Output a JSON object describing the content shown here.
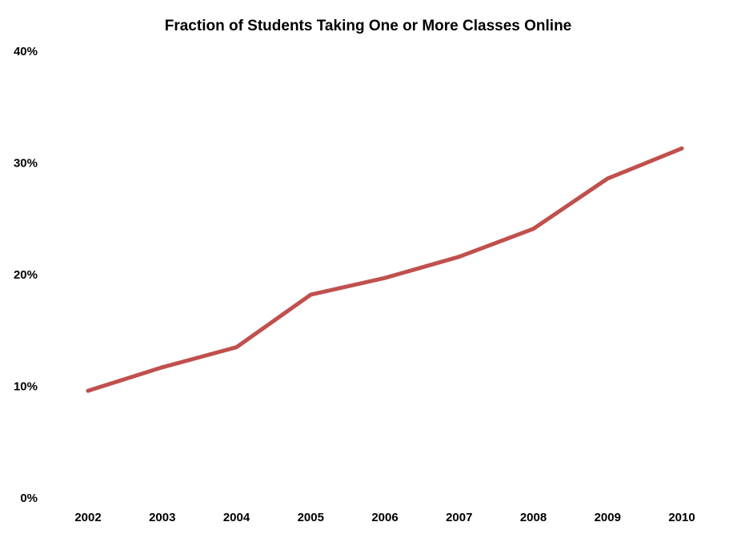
{
  "chart_data": {
    "type": "line",
    "title": "Fraction of Students Taking One or More Classes Online",
    "xlabel": "",
    "ylabel": "",
    "x": [
      "2002",
      "2003",
      "2004",
      "2005",
      "2006",
      "2007",
      "2008",
      "2009",
      "2010"
    ],
    "series": [
      {
        "values": [
          9.6,
          11.7,
          13.5,
          18.2,
          19.7,
          21.6,
          24.1,
          28.6,
          31.3
        ],
        "color": "#c0504d"
      }
    ],
    "ylim": [
      0,
      40
    ],
    "yticks": [
      0,
      10,
      20,
      30,
      40
    ],
    "ytick_labels": [
      "0%",
      "10%",
      "20%",
      "30%",
      "40%"
    ],
    "grid": false,
    "legend": "none"
  }
}
